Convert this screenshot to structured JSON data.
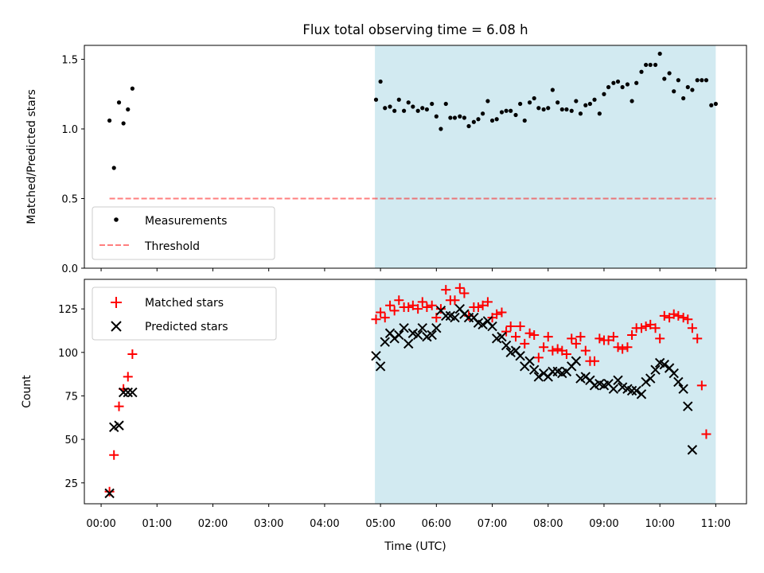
{
  "title": "Flux total observing time = 6.08 h",
  "colors": {
    "shade": "#add8e6",
    "measurements": "#000000",
    "threshold": "#ff0000",
    "matched": "#ff0000",
    "predicted": "#000000"
  },
  "chart_data": [
    {
      "type": "scatter",
      "panel": "top",
      "xlabel": "",
      "ylabel": "Matched/Predicted stars",
      "xlim": [
        -0.3,
        11.55
      ],
      "ylim": [
        0,
        1.6
      ],
      "yticks": [
        0.0,
        0.5,
        1.0,
        1.5
      ],
      "ytick_labels": [
        "0.0",
        "0.5",
        "1.0",
        "1.5"
      ],
      "shaded_region": {
        "x0": 4.9,
        "x1": 11.0
      },
      "legend": {
        "placement": "lower-left",
        "entries": [
          "Measurements",
          "Threshold"
        ]
      },
      "threshold": {
        "name": "Threshold",
        "y": 0.5,
        "x0": 0.15,
        "x1": 11.0,
        "style": "dashed"
      },
      "series": [
        {
          "name": "Measurements",
          "marker": "dot",
          "points": [
            [
              0.15,
              1.06
            ],
            [
              0.23,
              0.72
            ],
            [
              0.32,
              1.19
            ],
            [
              0.4,
              1.04
            ],
            [
              0.48,
              1.14
            ],
            [
              0.56,
              1.29
            ],
            [
              4.92,
              1.21
            ],
            [
              5.0,
              1.34
            ],
            [
              5.08,
              1.15
            ],
            [
              5.17,
              1.16
            ],
            [
              5.25,
              1.13
            ],
            [
              5.33,
              1.21
            ],
            [
              5.42,
              1.13
            ],
            [
              5.5,
              1.19
            ],
            [
              5.58,
              1.16
            ],
            [
              5.67,
              1.13
            ],
            [
              5.75,
              1.15
            ],
            [
              5.83,
              1.14
            ],
            [
              5.92,
              1.18
            ],
            [
              6.0,
              1.09
            ],
            [
              6.08,
              1.0
            ],
            [
              6.17,
              1.18
            ],
            [
              6.25,
              1.08
            ],
            [
              6.33,
              1.08
            ],
            [
              6.42,
              1.09
            ],
            [
              6.5,
              1.08
            ],
            [
              6.58,
              1.02
            ],
            [
              6.67,
              1.05
            ],
            [
              6.75,
              1.07
            ],
            [
              6.83,
              1.11
            ],
            [
              6.92,
              1.2
            ],
            [
              7.0,
              1.06
            ],
            [
              7.08,
              1.07
            ],
            [
              7.17,
              1.12
            ],
            [
              7.25,
              1.13
            ],
            [
              7.33,
              1.13
            ],
            [
              7.42,
              1.1
            ],
            [
              7.5,
              1.18
            ],
            [
              7.58,
              1.06
            ],
            [
              7.67,
              1.19
            ],
            [
              7.75,
              1.22
            ],
            [
              7.83,
              1.15
            ],
            [
              7.92,
              1.14
            ],
            [
              8.0,
              1.15
            ],
            [
              8.08,
              1.28
            ],
            [
              8.17,
              1.19
            ],
            [
              8.25,
              1.14
            ],
            [
              8.33,
              1.14
            ],
            [
              8.42,
              1.13
            ],
            [
              8.5,
              1.2
            ],
            [
              8.58,
              1.11
            ],
            [
              8.67,
              1.17
            ],
            [
              8.75,
              1.18
            ],
            [
              8.83,
              1.21
            ],
            [
              8.92,
              1.11
            ],
            [
              9.0,
              1.25
            ],
            [
              9.08,
              1.3
            ],
            [
              9.17,
              1.33
            ],
            [
              9.25,
              1.34
            ],
            [
              9.33,
              1.3
            ],
            [
              9.42,
              1.32
            ],
            [
              9.5,
              1.2
            ],
            [
              9.58,
              1.33
            ],
            [
              9.67,
              1.41
            ],
            [
              9.75,
              1.46
            ],
            [
              9.83,
              1.46
            ],
            [
              9.92,
              1.46
            ],
            [
              10.0,
              1.54
            ],
            [
              10.08,
              1.36
            ],
            [
              10.17,
              1.4
            ],
            [
              10.25,
              1.27
            ],
            [
              10.33,
              1.35
            ],
            [
              10.42,
              1.22
            ],
            [
              10.5,
              1.3
            ],
            [
              10.58,
              1.28
            ],
            [
              10.67,
              1.35
            ],
            [
              10.75,
              1.35
            ],
            [
              10.83,
              1.35
            ],
            [
              10.92,
              1.17
            ],
            [
              11.0,
              1.18
            ]
          ]
        }
      ]
    },
    {
      "type": "scatter",
      "panel": "bottom",
      "xlabel": "Time (UTC)",
      "ylabel": "Count",
      "xlim": [
        -0.3,
        11.55
      ],
      "ylim": [
        13,
        142
      ],
      "yticks": [
        25,
        50,
        75,
        100,
        125
      ],
      "ytick_labels": [
        "25",
        "50",
        "75",
        "100",
        "125"
      ],
      "xticks": [
        0,
        1,
        2,
        3,
        4,
        5,
        6,
        7,
        8,
        9,
        10,
        11
      ],
      "xtick_labels": [
        "00:00",
        "01:00",
        "02:00",
        "03:00",
        "04:00",
        "05:00",
        "06:00",
        "07:00",
        "08:00",
        "09:00",
        "10:00",
        "11:00"
      ],
      "shaded_region": {
        "x0": 4.9,
        "x1": 11.0
      },
      "legend": {
        "placement": "upper-left",
        "entries": [
          "Matched stars",
          "Predicted stars"
        ]
      },
      "series": [
        {
          "name": "Matched stars",
          "marker": "plus",
          "points": [
            [
              0.15,
              20
            ],
            [
              0.23,
              41
            ],
            [
              0.32,
              69
            ],
            [
              0.4,
              79
            ],
            [
              0.48,
              86
            ],
            [
              0.56,
              99
            ],
            [
              4.92,
              119
            ],
            [
              5.0,
              123
            ],
            [
              5.08,
              120
            ],
            [
              5.17,
              127
            ],
            [
              5.25,
              124
            ],
            [
              5.33,
              130
            ],
            [
              5.42,
              126
            ],
            [
              5.5,
              126
            ],
            [
              5.58,
              127
            ],
            [
              5.67,
              125
            ],
            [
              5.75,
              129
            ],
            [
              5.83,
              126
            ],
            [
              5.92,
              127
            ],
            [
              6.0,
              120
            ],
            [
              6.08,
              125
            ],
            [
              6.17,
              136
            ],
            [
              6.25,
              130
            ],
            [
              6.33,
              130
            ],
            [
              6.42,
              137
            ],
            [
              6.5,
              134
            ],
            [
              6.58,
              121
            ],
            [
              6.67,
              126
            ],
            [
              6.75,
              126
            ],
            [
              6.83,
              127
            ],
            [
              6.92,
              129
            ],
            [
              7.0,
              120
            ],
            [
              7.08,
              122
            ],
            [
              7.17,
              123
            ],
            [
              7.25,
              112
            ],
            [
              7.33,
              115
            ],
            [
              7.42,
              109
            ],
            [
              7.5,
              115
            ],
            [
              7.58,
              105
            ],
            [
              7.67,
              111
            ],
            [
              7.75,
              110
            ],
            [
              7.83,
              97
            ],
            [
              7.92,
              103
            ],
            [
              8.0,
              109
            ],
            [
              8.08,
              101
            ],
            [
              8.17,
              102
            ],
            [
              8.25,
              101
            ],
            [
              8.33,
              99
            ],
            [
              8.42,
              108
            ],
            [
              8.5,
              105
            ],
            [
              8.58,
              109
            ],
            [
              8.67,
              101
            ],
            [
              8.75,
              95
            ],
            [
              8.83,
              95
            ],
            [
              8.92,
              108
            ],
            [
              9.0,
              107
            ],
            [
              9.08,
              107
            ],
            [
              9.17,
              109
            ],
            [
              9.25,
              103
            ],
            [
              9.33,
              102
            ],
            [
              9.42,
              103
            ],
            [
              9.5,
              110
            ],
            [
              9.58,
              114
            ],
            [
              9.67,
              114
            ],
            [
              9.75,
              115
            ],
            [
              9.83,
              116
            ],
            [
              9.92,
              114
            ],
            [
              10.0,
              108
            ],
            [
              10.08,
              121
            ],
            [
              10.17,
              120
            ],
            [
              10.25,
              122
            ],
            [
              10.33,
              121
            ],
            [
              10.42,
              120
            ],
            [
              10.5,
              119
            ],
            [
              10.58,
              114
            ],
            [
              10.67,
              108
            ],
            [
              10.75,
              81
            ],
            [
              10.83,
              53
            ]
          ]
        },
        {
          "name": "Predicted stars",
          "marker": "x",
          "points": [
            [
              0.15,
              19
            ],
            [
              0.23,
              57
            ],
            [
              0.32,
              58
            ],
            [
              0.4,
              77
            ],
            [
              0.48,
              77
            ],
            [
              0.56,
              77
            ],
            [
              4.92,
              98
            ],
            [
              5.0,
              92
            ],
            [
              5.08,
              106
            ],
            [
              5.17,
              111
            ],
            [
              5.25,
              108
            ],
            [
              5.33,
              110
            ],
            [
              5.42,
              114
            ],
            [
              5.5,
              105
            ],
            [
              5.58,
              111
            ],
            [
              5.67,
              110
            ],
            [
              5.75,
              114
            ],
            [
              5.83,
              109
            ],
            [
              5.92,
              110
            ],
            [
              6.0,
              114
            ],
            [
              6.08,
              124
            ],
            [
              6.17,
              121
            ],
            [
              6.25,
              121
            ],
            [
              6.33,
              120
            ],
            [
              6.42,
              125
            ],
            [
              6.5,
              122
            ],
            [
              6.58,
              120
            ],
            [
              6.67,
              120
            ],
            [
              6.75,
              117
            ],
            [
              6.83,
              116
            ],
            [
              6.92,
              118
            ],
            [
              7.0,
              115
            ],
            [
              7.08,
              108
            ],
            [
              7.17,
              109
            ],
            [
              7.25,
              104
            ],
            [
              7.33,
              100
            ],
            [
              7.42,
              101
            ],
            [
              7.5,
              98
            ],
            [
              7.58,
              92
            ],
            [
              7.67,
              95
            ],
            [
              7.75,
              90
            ],
            [
              7.83,
              86
            ],
            [
              7.92,
              88
            ],
            [
              8.0,
              86
            ],
            [
              8.08,
              89
            ],
            [
              8.17,
              89
            ],
            [
              8.25,
              88
            ],
            [
              8.33,
              89
            ],
            [
              8.42,
              92
            ],
            [
              8.5,
              95
            ],
            [
              8.58,
              85
            ],
            [
              8.67,
              86
            ],
            [
              8.75,
              84
            ],
            [
              8.83,
              81
            ],
            [
              8.92,
              82
            ],
            [
              9.0,
              81
            ],
            [
              9.08,
              82
            ],
            [
              9.17,
              79
            ],
            [
              9.25,
              84
            ],
            [
              9.33,
              80
            ],
            [
              9.42,
              79
            ],
            [
              9.5,
              78
            ],
            [
              9.58,
              78
            ],
            [
              9.67,
              76
            ],
            [
              9.75,
              83
            ],
            [
              9.83,
              85
            ],
            [
              9.92,
              90
            ],
            [
              10.0,
              94
            ],
            [
              10.08,
              93
            ],
            [
              10.17,
              91
            ],
            [
              10.25,
              88
            ],
            [
              10.33,
              83
            ],
            [
              10.42,
              79
            ],
            [
              10.5,
              69
            ],
            [
              10.58,
              44
            ]
          ]
        }
      ]
    }
  ]
}
